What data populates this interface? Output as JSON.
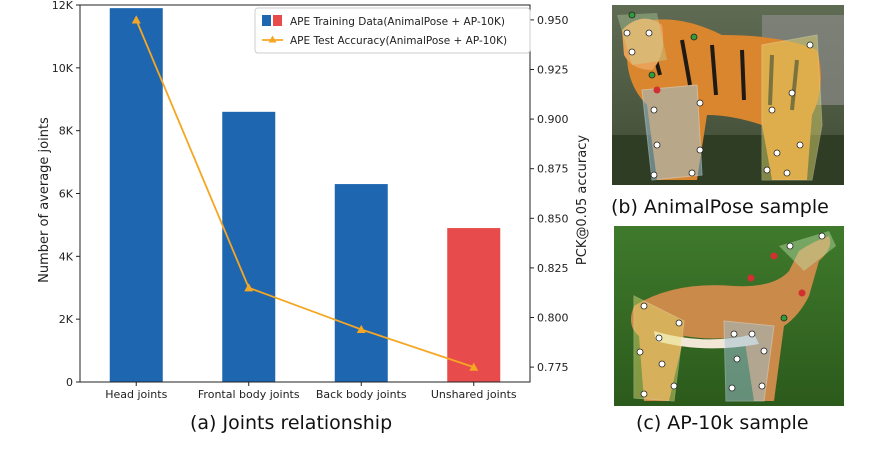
{
  "colors": {
    "bar_blue": "#1f66b0",
    "bar_red": "#e84b4b",
    "line_orange": "#f5a623",
    "axis": "#222222"
  },
  "chart_data": {
    "type": "bar",
    "categories": [
      "Head joints",
      "Frontal body joints",
      "Back body joints",
      "Unshared joints"
    ],
    "series": [
      {
        "name": "APE Training Data(AnimalPose + AP-10K)",
        "type": "bar",
        "axis": "left",
        "values": [
          11900,
          8600,
          6300,
          4900
        ],
        "colors": [
          "#1f66b0",
          "#1f66b0",
          "#1f66b0",
          "#e84b4b"
        ]
      },
      {
        "name": "APE Test Accuracy(AnimalPose + AP-10K)",
        "type": "line",
        "axis": "right",
        "marker": "triangle",
        "values": [
          0.95,
          0.815,
          0.794,
          0.775
        ]
      }
    ],
    "ylabel": "Number of average joints",
    "y2label": "PCK@0.05 accuracy",
    "ylim": [
      0,
      12000
    ],
    "y2lim": [
      0.7675,
      0.9575
    ],
    "yticks": [
      0,
      2000,
      4000,
      6000,
      8000,
      10000,
      12000
    ],
    "yticklabels": [
      "0",
      "2K",
      "4K",
      "6K",
      "8K",
      "10K",
      "12K"
    ],
    "y2ticks": [
      0.775,
      0.8,
      0.825,
      0.85,
      0.875,
      0.9,
      0.925,
      0.95
    ],
    "y2ticklabels": [
      "0.775",
      "0.800",
      "0.825",
      "0.850",
      "0.875",
      "0.900",
      "0.925",
      "0.950"
    ],
    "legend_position": "top-right",
    "grid": false
  },
  "captions": {
    "a": "(a) Joints relationship",
    "b": "(b) AnimalPose sample",
    "c": "(c) AP-10k sample"
  }
}
